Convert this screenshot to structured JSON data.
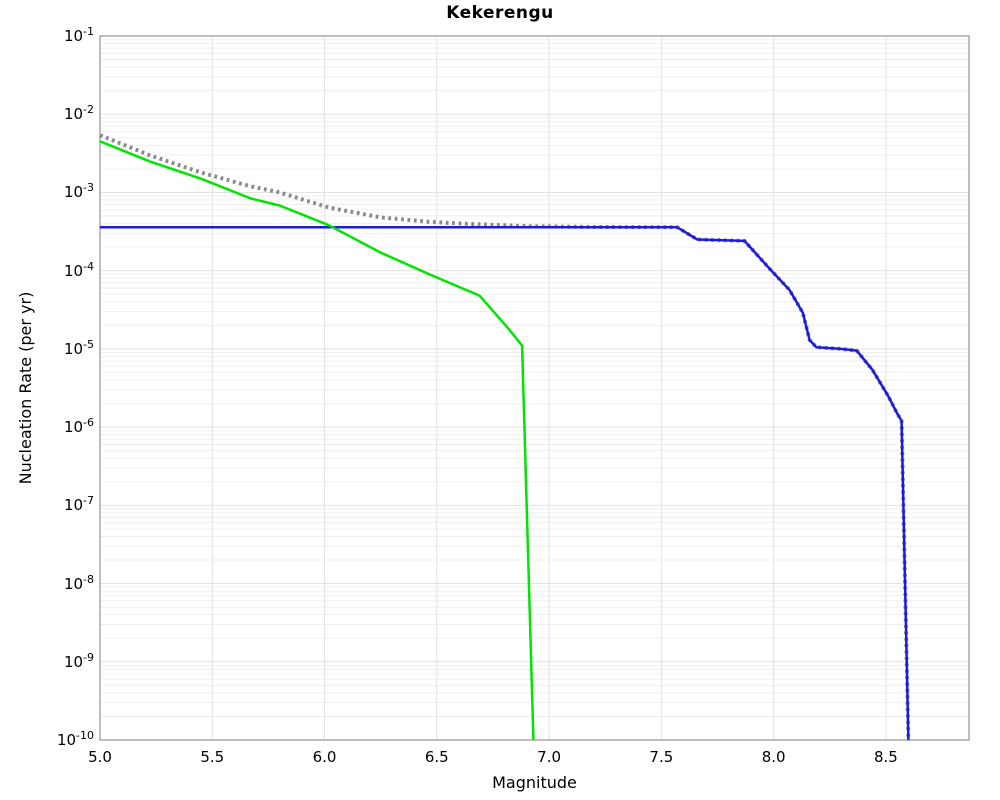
{
  "title": "Kekerengu",
  "xlabel": "Magnitude",
  "ylabel": "Nucleation Rate (per yr)",
  "colors": {
    "background": "#ffffff",
    "frame": "#a9a9a9",
    "grid_major": "#e2e2e2",
    "grid_minor": "#efefef",
    "blue_line": "#1b1be0",
    "green_line": "#00e400",
    "gray_dotted": "#8a8a8a",
    "text": "#000000"
  },
  "chart_data": {
    "type": "line",
    "title": "Kekerengu",
    "xlabel": "Magnitude",
    "ylabel": "Nucleation Rate (per yr)",
    "x_range": [
      5.0,
      8.87
    ],
    "y_scale": "log",
    "y_range": [
      1e-10,
      0.1
    ],
    "x_tick_labels": [
      "5.0",
      "5.5",
      "6.0",
      "6.5",
      "7.0",
      "7.5",
      "8.0",
      "8.5"
    ],
    "x_ticks": [
      5.0,
      5.5,
      6.0,
      6.5,
      7.0,
      7.5,
      8.0,
      8.5
    ],
    "y_tick_exponents": [
      -1,
      -2,
      -3,
      -4,
      -5,
      -6,
      -7,
      -8,
      -9,
      -10
    ],
    "grid": "major and log-minor gridlines, light gray, on",
    "legend_position": "none",
    "series": [
      {
        "name": "gray-dotted-rate",
        "style": "dotted",
        "color": "#8a8a8a",
        "width": 4,
        "points": [
          [
            5.0,
            0.0054
          ],
          [
            5.22,
            0.003
          ],
          [
            5.45,
            0.0018
          ],
          [
            5.67,
            0.0012
          ],
          [
            5.8,
            0.001
          ],
          [
            6.02,
            0.00064
          ],
          [
            6.25,
            0.00048
          ],
          [
            6.47,
            0.00042
          ],
          [
            6.69,
            0.00039
          ],
          [
            6.91,
            0.00037
          ],
          [
            7.2,
            0.000362
          ],
          [
            7.57,
            0.00036
          ],
          [
            7.66,
            0.00025
          ],
          [
            7.87,
            0.00024
          ],
          [
            7.99,
            0.0001
          ],
          [
            8.07,
            5.7e-05
          ],
          [
            8.13,
            2.9e-05
          ],
          [
            8.16,
            1.3e-05
          ],
          [
            8.19,
            1.05e-05
          ],
          [
            8.3,
            1e-05
          ],
          [
            8.37,
            9.5e-06
          ],
          [
            8.44,
            5.4e-06
          ],
          [
            8.51,
            2.5e-06
          ],
          [
            8.55,
            1.5e-06
          ],
          [
            8.57,
            1.2e-06
          ],
          [
            8.6,
            1e-10
          ]
        ]
      },
      {
        "name": "blue-solid-rate",
        "style": "solid",
        "color": "#1b1be0",
        "width": 2.5,
        "points": [
          [
            5.0,
            0.00036
          ],
          [
            7.57,
            0.00036
          ],
          [
            7.66,
            0.00025
          ],
          [
            7.87,
            0.00024
          ],
          [
            7.99,
            0.0001
          ],
          [
            8.07,
            5.7e-05
          ],
          [
            8.13,
            2.9e-05
          ],
          [
            8.16,
            1.3e-05
          ],
          [
            8.19,
            1.05e-05
          ],
          [
            8.3,
            1e-05
          ],
          [
            8.37,
            9.5e-06
          ],
          [
            8.44,
            5.4e-06
          ],
          [
            8.51,
            2.5e-06
          ],
          [
            8.55,
            1.5e-06
          ],
          [
            8.57,
            1.2e-06
          ],
          [
            8.6,
            1e-10
          ]
        ]
      },
      {
        "name": "green-solid-rate",
        "style": "solid",
        "color": "#00e400",
        "width": 2.5,
        "points": [
          [
            5.0,
            0.0045
          ],
          [
            5.22,
            0.0025
          ],
          [
            5.45,
            0.0015
          ],
          [
            5.67,
            0.00084
          ],
          [
            5.8,
            0.00068
          ],
          [
            6.02,
            0.00038
          ],
          [
            6.25,
            0.00017
          ],
          [
            6.47,
            8.9e-05
          ],
          [
            6.69,
            4.8e-05
          ],
          [
            6.82,
            1.8e-05
          ],
          [
            6.88,
            1.1e-05
          ],
          [
            6.93,
            1e-10
          ]
        ]
      }
    ]
  }
}
